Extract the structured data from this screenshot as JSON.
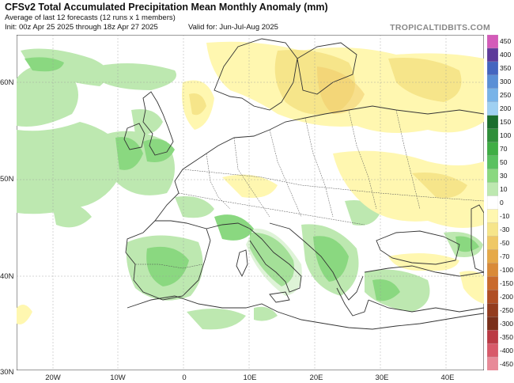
{
  "header": {
    "title": "CFSv2 Total Accumulated Precipitation Mean Monthly Anomaly (mm)",
    "subtitle": "Average of last 12 forecasts (12 runs x 1 members)",
    "init": "Init: 00z Apr 25 2025 through 18z Apr 27 2025",
    "valid": "Valid for: Jun-Jul-Aug 2025",
    "brand": "TROPICALTIDBITS.COM"
  },
  "axes": {
    "lat_labels": [
      "60N",
      "50N",
      "40N",
      "30N"
    ],
    "lon_labels": [
      "20W",
      "10W",
      "0",
      "10E",
      "20E",
      "30E",
      "40E"
    ]
  },
  "colorbar": {
    "labels": [
      "450",
      "400",
      "350",
      "300",
      "250",
      "200",
      "150",
      "100",
      "70",
      "50",
      "30",
      "10",
      "0",
      "-10",
      "-30",
      "-50",
      "-70",
      "-100",
      "-150",
      "-200",
      "-250",
      "-300",
      "-350",
      "-400",
      "-450"
    ],
    "colors": [
      "#d45bb9",
      "#5d3a9a",
      "#4465c0",
      "#5a8fd6",
      "#78b3e8",
      "#9fd0f2",
      "#1a6e2e",
      "#2f8f3a",
      "#3fae45",
      "#59c160",
      "#8ad880",
      "#bde8b0",
      "#ffffff",
      "#fff7b0",
      "#f6e58a",
      "#efc866",
      "#e6a948",
      "#d98a38",
      "#c96a2c",
      "#b04e24",
      "#933c1e",
      "#7a2f1a",
      "#bb3a44",
      "#d85a6a",
      "#e88a98"
    ]
  },
  "colors": {
    "ocean": "#ffffff",
    "land": "#ffffff",
    "wet_light": "#bde8b0",
    "wet_medium": "#8ad880",
    "wet_strong": "#59c160",
    "dry_light": "#fff7b0",
    "dry_medium": "#f6e58a"
  }
}
